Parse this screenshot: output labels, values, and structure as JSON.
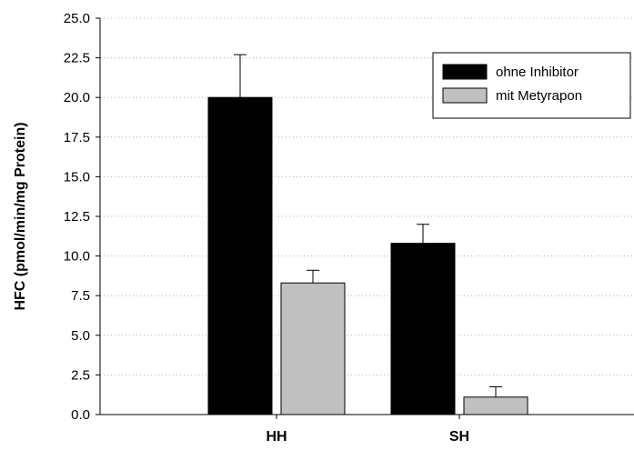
{
  "chart_data": {
    "type": "bar",
    "title": "",
    "xlabel": "",
    "ylabel": "HFC (pmol/min/mg Protein)",
    "ylim": [
      0,
      25
    ],
    "yticks": [
      "0.0",
      "2.5",
      "5.0",
      "7.5",
      "10.0",
      "12.5",
      "15.0",
      "17.5",
      "20.0",
      "22.5",
      "25.0"
    ],
    "categories": [
      "HH",
      "SH"
    ],
    "series": [
      {
        "name": "ohne Inhibitor",
        "color": "#000000",
        "values": [
          20.0,
          10.8
        ],
        "errors": [
          2.7,
          1.2
        ]
      },
      {
        "name": "mit Metyrapon",
        "color": "#c0c0c0",
        "values": [
          8.3,
          1.1
        ],
        "errors": [
          0.8,
          0.65
        ]
      }
    ],
    "grid": true,
    "legend_position": "top-right"
  }
}
